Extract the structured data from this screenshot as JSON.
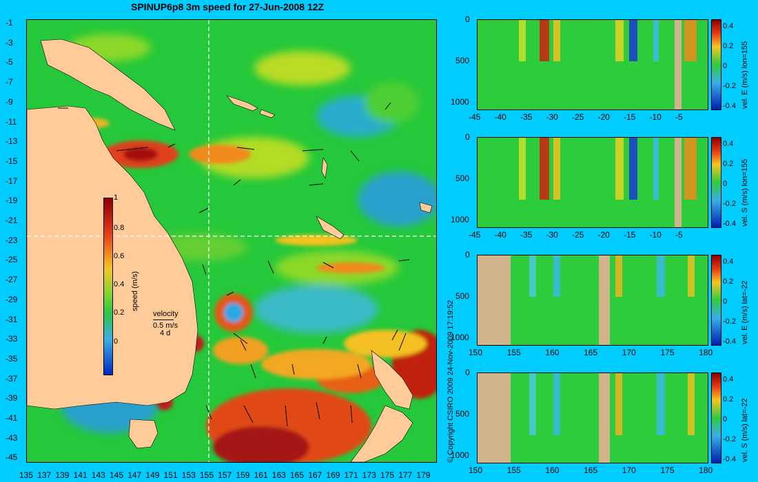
{
  "title": "SPINUP6p8 3m speed for 27-Jun-2008 12Z",
  "copyright": "© Copyright CSIRO 2009   24-Nov-2009 17:19:52",
  "map": {
    "lat_labels": [
      "-1",
      "-3",
      "-5",
      "-7",
      "-9",
      "-11",
      "-13",
      "-15",
      "-17",
      "-19",
      "-21",
      "-23",
      "-25",
      "-27",
      "-29",
      "-31",
      "-33",
      "-35",
      "-37",
      "-39",
      "-41",
      "-43",
      "-45"
    ],
    "lon_labels": [
      "135",
      "137",
      "139",
      "141",
      "143",
      "145",
      "147",
      "149",
      "151",
      "153",
      "155",
      "157",
      "159",
      "161",
      "163",
      "165",
      "167",
      "169",
      "171",
      "173",
      "175",
      "177",
      "179"
    ],
    "crosshair": {
      "lon": 155,
      "lat": -22
    },
    "colorbar": {
      "label": "speed (m/s)",
      "ticks": [
        "1",
        "0.8",
        "0.6",
        "0.4",
        "0.2",
        "0"
      ],
      "range": [
        0,
        1
      ]
    },
    "velocity_key": {
      "title": "velocity",
      "speed": "0.5 m/s",
      "duration": "4 d"
    },
    "colors": {
      "land": "#ffcc99",
      "low": "#1e5aff",
      "mid": "#2ecc40",
      "high": "#e83a14",
      "max": "#a01010"
    }
  },
  "sections": [
    {
      "label": "vel. E (m/s) lon=155",
      "x_labels": [
        "-45",
        "-40",
        "-35",
        "-30",
        "-25",
        "-20",
        "-15",
        "-10",
        "-5"
      ],
      "y_labels": [
        "0",
        "500",
        "1000"
      ],
      "cbar_ticks": [
        "0.4",
        "0.2",
        "0",
        "-0.2",
        "-0.4"
      ]
    },
    {
      "label": "vel. S (m/s) lon=155",
      "x_labels": [
        "-45",
        "-40",
        "-35",
        "-30",
        "-25",
        "-20",
        "-15",
        "-10",
        "-5"
      ],
      "y_labels": [
        "0",
        "500",
        "1000"
      ],
      "cbar_ticks": [
        "0.4",
        "0.2",
        "0",
        "-0.2",
        "-0.4"
      ]
    },
    {
      "label": "vel. E (m/s) lat=-22",
      "x_labels": [
        "150",
        "155",
        "160",
        "165",
        "170",
        "175",
        "180"
      ],
      "y_labels": [
        "0",
        "500",
        "1000"
      ],
      "cbar_ticks": [
        "0.4",
        "0.2",
        "0",
        "-0.2",
        "-0.4"
      ]
    },
    {
      "label": "vel. S (m/s) lat=-22",
      "x_labels": [
        "150",
        "155",
        "160",
        "165",
        "170",
        "175",
        "180"
      ],
      "y_labels": [
        "0",
        "500",
        "1000"
      ],
      "cbar_ticks": [
        "0.4",
        "0.2",
        "0",
        "-0.2",
        "-0.4"
      ]
    }
  ]
}
